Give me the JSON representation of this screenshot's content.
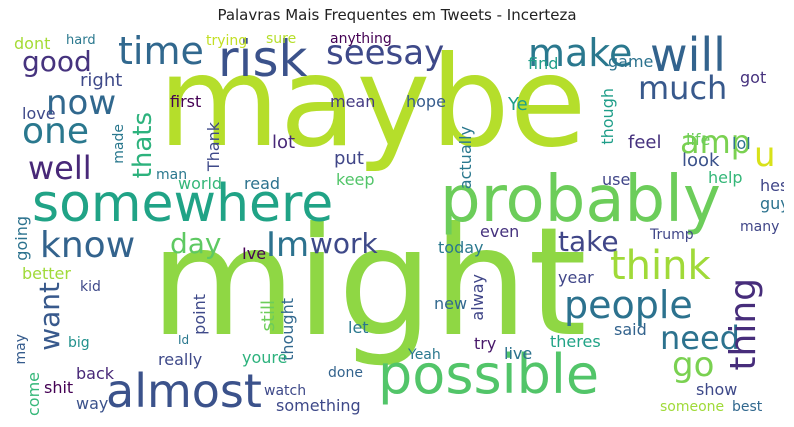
{
  "title": "Palavras Mais Frequentes em Tweets - Incerteza",
  "words": [
    {
      "t": "maybe",
      "c": "#b5de2b"
    },
    {
      "t": "might",
      "c": "#8fd744"
    },
    {
      "t": "probably",
      "c": "#6ccd5a"
    },
    {
      "t": "somewhere",
      "c": "#20a386"
    },
    {
      "t": "possible",
      "c": "#52c569"
    },
    {
      "t": "almost",
      "c": "#3b528b"
    },
    {
      "t": "risk",
      "c": "#3b528b"
    },
    {
      "t": "will",
      "c": "#33638d"
    },
    {
      "t": "make",
      "c": "#2a788e"
    },
    {
      "t": "time",
      "c": "#31688e"
    },
    {
      "t": "seesay",
      "c": "#3e4989"
    },
    {
      "t": "people",
      "c": "#2c728e"
    },
    {
      "t": "think",
      "c": "#a0da39"
    },
    {
      "t": "know",
      "c": "#33638d"
    },
    {
      "t": "one",
      "c": "#2a788e"
    },
    {
      "t": "now",
      "c": "#31688e"
    },
    {
      "t": "well",
      "c": "#482878"
    },
    {
      "t": "good",
      "c": "#46337e"
    },
    {
      "t": "much",
      "c": "#38598c"
    },
    {
      "t": "Im",
      "c": "#2c728e"
    },
    {
      "t": "need",
      "c": "#2c728e"
    },
    {
      "t": "thing",
      "c": "#472d7b"
    },
    {
      "t": "amp",
      "c": "#7ad151"
    },
    {
      "t": "take",
      "c": "#404688"
    },
    {
      "t": "work",
      "c": "#3e4989"
    },
    {
      "t": "go",
      "c": "#7ad151"
    },
    {
      "t": "u",
      "c": "#d8e219"
    },
    {
      "t": "want",
      "c": "#38598c"
    },
    {
      "t": "day",
      "c": "#5ec962"
    },
    {
      "t": "thats",
      "c": "#2db27d"
    },
    {
      "t": "right",
      "c": "#3e4989"
    },
    {
      "t": "dont",
      "c": "#a5db36"
    },
    {
      "t": "sure",
      "c": "#b5de2b"
    },
    {
      "t": "trying",
      "c": "#c2df23"
    },
    {
      "t": "anything",
      "c": "#440154"
    },
    {
      "t": "hard",
      "c": "#2a788e"
    },
    {
      "t": "find",
      "c": "#1f9e89"
    },
    {
      "t": "game",
      "c": "#2c728e"
    },
    {
      "t": "got",
      "c": "#46327e"
    },
    {
      "t": "love",
      "c": "#3e4989"
    },
    {
      "t": "first",
      "c": "#440154"
    },
    {
      "t": "mean",
      "c": "#443a83"
    },
    {
      "t": "hope",
      "c": "#365c8d"
    },
    {
      "t": "Ye",
      "c": "#1f9e89"
    },
    {
      "t": "lot",
      "c": "#482878"
    },
    {
      "t": "Thank",
      "c": "#3e4989"
    },
    {
      "t": "put",
      "c": "#404688"
    },
    {
      "t": "keep",
      "c": "#52c569"
    },
    {
      "t": "read",
      "c": "#2c728e"
    },
    {
      "t": "world",
      "c": "#35b779"
    },
    {
      "t": "look",
      "c": "#3b528b"
    },
    {
      "t": "feel",
      "c": "#46327e"
    },
    {
      "t": "life",
      "c": "#6ccd5a"
    },
    {
      "t": "lol",
      "c": "#2c728e"
    },
    {
      "t": "help",
      "c": "#35b779"
    },
    {
      "t": "hes",
      "c": "#404688"
    },
    {
      "t": "guy",
      "c": "#2c728e"
    },
    {
      "t": "actually",
      "c": "#2a788e"
    },
    {
      "t": "though",
      "c": "#1f9e89"
    },
    {
      "t": "use",
      "c": "#404688"
    },
    {
      "t": "even",
      "c": "#46327e"
    },
    {
      "t": "today",
      "c": "#2a788e"
    },
    {
      "t": "Trump",
      "c": "#404688"
    },
    {
      "t": "many",
      "c": "#404688"
    },
    {
      "t": "year",
      "c": "#404688"
    },
    {
      "t": "said",
      "c": "#33638d"
    },
    {
      "t": "theres",
      "c": "#20a386"
    },
    {
      "t": "live",
      "c": "#2c728e"
    },
    {
      "t": "try",
      "c": "#48186a"
    },
    {
      "t": "new",
      "c": "#31688e"
    },
    {
      "t": "let",
      "c": "#2a788e"
    },
    {
      "t": "alway",
      "c": "#404688"
    },
    {
      "t": "Ive",
      "c": "#440154"
    },
    {
      "t": "point",
      "c": "#3e4989"
    },
    {
      "t": "still",
      "c": "#6ccd5a"
    },
    {
      "t": "thought",
      "c": "#31688e"
    },
    {
      "t": "youre",
      "c": "#2db27d"
    },
    {
      "t": "really",
      "c": "#3e4989"
    },
    {
      "t": "back",
      "c": "#482878"
    },
    {
      "t": "way",
      "c": "#3b528b"
    },
    {
      "t": "shit",
      "c": "#440154"
    },
    {
      "t": "come",
      "c": "#35b779"
    },
    {
      "t": "something",
      "c": "#3e4989"
    },
    {
      "t": "show",
      "c": "#3e4989"
    },
    {
      "t": "best",
      "c": "#31688e"
    },
    {
      "t": "someone",
      "c": "#a0da39"
    },
    {
      "t": "better",
      "c": "#a0da39"
    },
    {
      "t": "going",
      "c": "#2c728e"
    },
    {
      "t": "made",
      "c": "#2a788e"
    },
    {
      "t": "man",
      "c": "#2a788e"
    },
    {
      "t": "may",
      "c": "#365c8d"
    },
    {
      "t": "kid",
      "c": "#3e4989"
    },
    {
      "t": "Id",
      "c": "#2a788e"
    },
    {
      "t": "big",
      "c": "#21918c"
    },
    {
      "t": "done",
      "c": "#33638d"
    },
    {
      "t": "watch",
      "c": "#3e4989"
    },
    {
      "t": "Yeah",
      "c": "#2a788e"
    },
    {
      "t": "thing",
      "c": "#472d7b"
    }
  ]
}
